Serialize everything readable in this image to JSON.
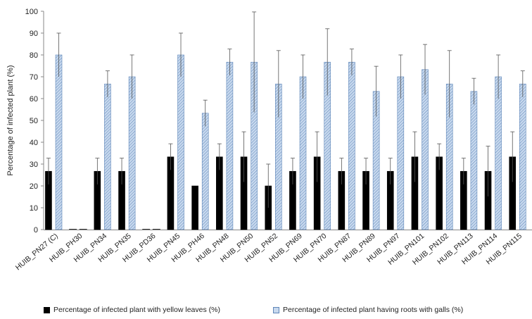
{
  "chart_data": {
    "type": "bar",
    "ylabel": "Percentage of infected plant  (%)",
    "ylim": [
      0,
      100
    ],
    "yticks": [
      0,
      10,
      20,
      30,
      40,
      50,
      60,
      70,
      80,
      90,
      100
    ],
    "categories": [
      "HUIB_PN27 (C)",
      "HUIB_PH30",
      "HUIB_PN34",
      "HUIB_PN35",
      "HUIB_PD36",
      "HUIB_PN45",
      "HUIB_PH46",
      "HUIB_PN48",
      "HUIB_PN50",
      "HUIB_PN52",
      "HUIB_PN69",
      "HUIB_PN70",
      "HUIB_PN87",
      "HUIB_PN89",
      "HUIB_PN97",
      "HUIB_PN101",
      "HUIB_PN102",
      "HUIB_PN113",
      "HUIB_PN114",
      "HUIB_PN115"
    ],
    "series": [
      {
        "name": "Percentage of infected plant with yellow leaves (%)",
        "color": "#000000",
        "values": [
          26.7,
          0,
          26.7,
          26.7,
          0,
          33.3,
          20,
          33.3,
          33.3,
          20,
          26.7,
          33.3,
          26.7,
          26.7,
          26.7,
          33.3,
          33.3,
          26.7,
          26.7,
          33.3
        ],
        "errors": [
          6,
          0,
          6,
          6,
          0,
          6,
          0,
          6,
          11.5,
          10,
          6,
          11.5,
          6,
          6,
          6,
          11.5,
          6,
          6,
          11.5,
          11.5
        ]
      },
      {
        "name": "Percentage of infected plant having roots with galls (%)",
        "color": "#b9cde6",
        "values": [
          80,
          0,
          66.7,
          70,
          0,
          80,
          53.3,
          76.7,
          76.7,
          66.7,
          70,
          76.7,
          76.7,
          63.3,
          70,
          73.3,
          66.7,
          63.3,
          70,
          66.7
        ],
        "errors": [
          10,
          0,
          6,
          10,
          0,
          10,
          6,
          6,
          23,
          15.3,
          10,
          15.3,
          6,
          11.5,
          10,
          11.5,
          15.3,
          6,
          10,
          6
        ]
      }
    ],
    "grid": false,
    "legend": "bottom"
  }
}
